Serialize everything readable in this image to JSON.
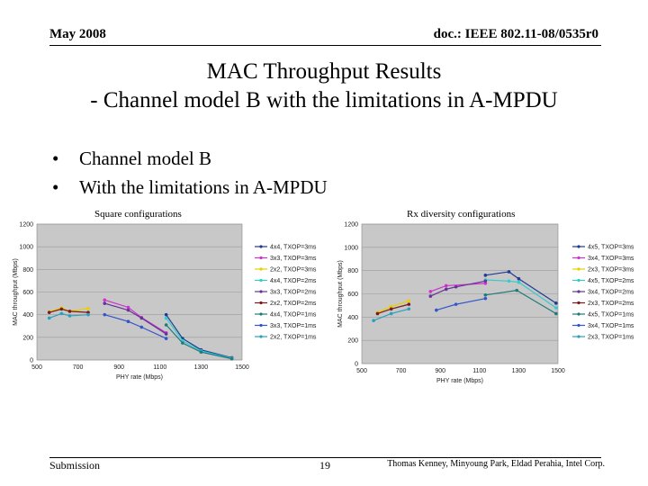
{
  "header": {
    "date": "May 2008",
    "doc": "doc.: IEEE 802.11-08/0535r0"
  },
  "title": {
    "line1": "MAC Throughput Results",
    "line2": "- Channel model B with the limitations in A-MPDU"
  },
  "bullets": [
    "Channel model B",
    "With the limitations in A-MPDU"
  ],
  "footer": {
    "left": "Submission",
    "page": "19",
    "authors": "Thomas Kenney, Minyoung Park, Eldad Perahia, Intel Corp."
  },
  "chart_data": [
    {
      "type": "line",
      "title": "Square configurations",
      "xlabel": "PHY rate (Mbps)",
      "ylabel": "MAC throughput (Mbps)",
      "xlim": [
        500,
        1500
      ],
      "ylim": [
        0,
        1200
      ],
      "xticks": [
        500,
        700,
        900,
        1100,
        1300,
        1500
      ],
      "yticks": [
        0,
        200,
        400,
        600,
        800,
        1000,
        1200
      ],
      "series": [
        {
          "name": "4x4, TXOP=3ms",
          "color": "#1f3a93",
          "points": [
            [
              1130,
              400
            ],
            [
              1210,
              190
            ],
            [
              1300,
              90
            ],
            [
              1450,
              20
            ]
          ]
        },
        {
          "name": "3x3, TXOP=3ms",
          "color": "#cc33cc",
          "points": [
            [
              830,
              530
            ],
            [
              945,
              465
            ],
            [
              1010,
              375
            ],
            [
              1130,
              240
            ]
          ]
        },
        {
          "name": "2x2, TXOP=3ms",
          "color": "#e8d000",
          "points": [
            [
              560,
              425
            ],
            [
              620,
              460
            ],
            [
              660,
              430
            ],
            [
              750,
              455
            ]
          ]
        },
        {
          "name": "4x4, TXOP=2ms",
          "color": "#33cccc",
          "points": [
            [
              1130,
              370
            ],
            [
              1210,
              170
            ],
            [
              1300,
              80
            ],
            [
              1450,
              15
            ]
          ]
        },
        {
          "name": "3x3, TXOP=2ms",
          "color": "#663399",
          "points": [
            [
              830,
              500
            ],
            [
              945,
              440
            ],
            [
              1010,
              370
            ],
            [
              1130,
              230
            ]
          ]
        },
        {
          "name": "2x2, TXOP=2ms",
          "color": "#7a1a1a",
          "points": [
            [
              560,
              420
            ],
            [
              620,
              450
            ],
            [
              660,
              430
            ],
            [
              750,
              420
            ]
          ]
        },
        {
          "name": "4x4, TXOP=1ms",
          "color": "#1f7a7a",
          "points": [
            [
              1130,
              310
            ],
            [
              1210,
              150
            ],
            [
              1300,
              70
            ],
            [
              1450,
              10
            ]
          ]
        },
        {
          "name": "3x3, TXOP=1ms",
          "color": "#3355cc",
          "points": [
            [
              830,
              400
            ],
            [
              945,
              340
            ],
            [
              1010,
              290
            ],
            [
              1130,
              190
            ]
          ]
        },
        {
          "name": "2x2, TXOP=1ms",
          "color": "#2aa0c0",
          "points": [
            [
              560,
              370
            ],
            [
              620,
              410
            ],
            [
              660,
              390
            ],
            [
              750,
              400
            ]
          ]
        }
      ]
    },
    {
      "type": "line",
      "title": "Rx diversity configurations",
      "xlabel": "PHY rate (Mbps)",
      "ylabel": "MAC throughput (Mbps)",
      "xlim": [
        500,
        1500
      ],
      "ylim": [
        0,
        1200
      ],
      "xticks": [
        500,
        700,
        900,
        1100,
        1300,
        1500
      ],
      "yticks": [
        0,
        200,
        400,
        600,
        800,
        1000,
        1200
      ],
      "series": [
        {
          "name": "4x5, TXOP=3ms",
          "color": "#1f3a93",
          "points": [
            [
              1130,
              760
            ],
            [
              1250,
              790
            ],
            [
              1300,
              730
            ],
            [
              1490,
              520
            ]
          ]
        },
        {
          "name": "3x4, TXOP=3ms",
          "color": "#cc33cc",
          "points": [
            [
              850,
              620
            ],
            [
              930,
              670
            ],
            [
              1130,
              690
            ]
          ]
        },
        {
          "name": "2x3, TXOP=3ms",
          "color": "#e8d000",
          "points": [
            [
              580,
              440
            ],
            [
              650,
              490
            ],
            [
              740,
              540
            ]
          ]
        },
        {
          "name": "4x5, TXOP=2ms",
          "color": "#33cccc",
          "points": [
            [
              1130,
              720
            ],
            [
              1250,
              710
            ],
            [
              1300,
              700
            ],
            [
              1490,
              480
            ]
          ]
        },
        {
          "name": "3x4, TXOP=2ms",
          "color": "#663399",
          "points": [
            [
              850,
              580
            ],
            [
              930,
              640
            ],
            [
              980,
              660
            ],
            [
              1130,
              710
            ]
          ]
        },
        {
          "name": "2x3, TXOP=2ms",
          "color": "#7a1a1a",
          "points": [
            [
              580,
              430
            ],
            [
              650,
              470
            ],
            [
              740,
              510
            ]
          ]
        },
        {
          "name": "4x5, TXOP=1ms",
          "color": "#1f7a7a",
          "points": [
            [
              1130,
              590
            ],
            [
              1290,
              630
            ],
            [
              1490,
              430
            ]
          ]
        },
        {
          "name": "3x4, TXOP=1ms",
          "color": "#3355cc",
          "points": [
            [
              880,
              460
            ],
            [
              980,
              510
            ],
            [
              1130,
              560
            ]
          ]
        },
        {
          "name": "2x3, TXOP=1ms",
          "color": "#2aa0c0",
          "points": [
            [
              560,
              370
            ],
            [
              650,
              430
            ],
            [
              740,
              470
            ]
          ]
        }
      ]
    }
  ]
}
